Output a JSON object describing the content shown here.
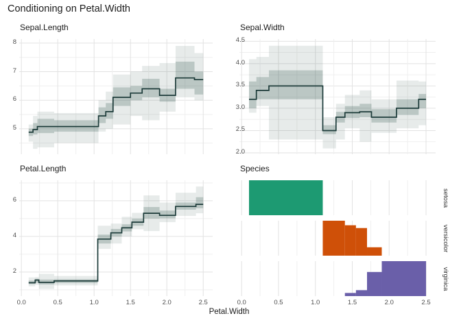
{
  "title": "Conditioning on Petal.Width",
  "axis": {
    "x_label": "Petal.Width",
    "x_ticks": [
      0,
      0.5,
      1,
      1.5,
      2,
      2.5
    ],
    "x_tick_labels": [
      "0.0",
      "0.5",
      "1.0",
      "1.5",
      "2.0",
      "2.5"
    ],
    "x_domain": [
      -0.03,
      2.63
    ],
    "x_minor_step": 0.25
  },
  "colors": {
    "median_line": "#1c3b39",
    "band_outer": "rgba(55,90,85,0.12)",
    "band_inner": "rgba(55,90,85,0.25)",
    "grid_major": "#e2e2e2",
    "grid_minor": "#efefef",
    "tick_label": "#4d4d4d",
    "text": "#1a1a1a"
  },
  "chart_data": [
    {
      "type": "step-band",
      "title": "Sepal.Length",
      "xlabel": "Petal.Width",
      "ylim": [
        4.11,
        8.14
      ],
      "yticks": [
        5,
        6,
        7,
        8
      ],
      "ytick_labels": [
        "5",
        "6",
        "7",
        "8"
      ],
      "segments": [
        {
          "x0": 0.1,
          "x1": 0.16,
          "median": 4.88,
          "inner": [
            4.75,
            5.0
          ],
          "outer": [
            4.55,
            5.15
          ]
        },
        {
          "x0": 0.16,
          "x1": 0.22,
          "median": 4.97,
          "inner": [
            4.8,
            5.2
          ],
          "outer": [
            4.3,
            5.45
          ]
        },
        {
          "x0": 0.22,
          "x1": 0.45,
          "median": 5.08,
          "inner": [
            4.85,
            5.35
          ],
          "outer": [
            4.35,
            5.6
          ]
        },
        {
          "x0": 0.45,
          "x1": 1.06,
          "median": 5.08,
          "inner": [
            4.9,
            5.3
          ],
          "outer": [
            4.5,
            5.55
          ]
        },
        {
          "x0": 1.06,
          "x1": 1.16,
          "median": 5.45,
          "inner": [
            5.2,
            5.75
          ],
          "outer": [
            4.9,
            6.0
          ]
        },
        {
          "x0": 1.16,
          "x1": 1.26,
          "median": 5.6,
          "inner": [
            5.35,
            5.9
          ],
          "outer": [
            5.0,
            6.3
          ]
        },
        {
          "x0": 1.26,
          "x1": 1.5,
          "median": 6.1,
          "inner": [
            5.8,
            6.45
          ],
          "outer": [
            5.15,
            6.9
          ]
        },
        {
          "x0": 1.5,
          "x1": 1.66,
          "median": 6.25,
          "inner": [
            6.0,
            6.5
          ],
          "outer": [
            5.45,
            7.0
          ]
        },
        {
          "x0": 1.66,
          "x1": 1.9,
          "median": 6.4,
          "inner": [
            6.1,
            6.75
          ],
          "outer": [
            5.3,
            7.2
          ]
        },
        {
          "x0": 1.9,
          "x1": 2.12,
          "median": 6.17,
          "inner": [
            5.95,
            6.4
          ],
          "outer": [
            5.6,
            7.3
          ]
        },
        {
          "x0": 2.12,
          "x1": 2.38,
          "median": 6.78,
          "inner": [
            6.4,
            7.35
          ],
          "outer": [
            6.1,
            7.9
          ]
        },
        {
          "x0": 2.38,
          "x1": 2.5,
          "median": 6.72,
          "inner": [
            6.2,
            7.0
          ],
          "outer": [
            6.0,
            7.65
          ]
        }
      ]
    },
    {
      "type": "step-band",
      "title": "Sepal.Width",
      "xlabel": "Petal.Width",
      "ylim": [
        1.97,
        4.55
      ],
      "yticks": [
        2,
        2.5,
        3,
        3.5,
        4,
        4.5
      ],
      "ytick_labels": [
        "2.0",
        "2.5",
        "3.0",
        "3.5",
        "4.0",
        "4.5"
      ],
      "segments": [
        {
          "x0": 0.1,
          "x1": 0.2,
          "median": 3.2,
          "inner": [
            3.0,
            3.6
          ],
          "outer": [
            2.9,
            4.1
          ]
        },
        {
          "x0": 0.2,
          "x1": 0.37,
          "median": 3.4,
          "inner": [
            3.2,
            3.7
          ],
          "outer": [
            3.05,
            4.15
          ]
        },
        {
          "x0": 0.37,
          "x1": 1.1,
          "median": 3.5,
          "inner": [
            3.2,
            3.85
          ],
          "outer": [
            2.3,
            4.4
          ]
        },
        {
          "x0": 1.1,
          "x1": 1.28,
          "median": 2.5,
          "inner": [
            2.42,
            2.62
          ],
          "outer": [
            2.1,
            2.8
          ]
        },
        {
          "x0": 1.28,
          "x1": 1.4,
          "median": 2.8,
          "inner": [
            2.68,
            2.92
          ],
          "outer": [
            2.3,
            3.1
          ]
        },
        {
          "x0": 1.4,
          "x1": 1.6,
          "median": 2.9,
          "inner": [
            2.78,
            3.05
          ],
          "outer": [
            2.55,
            3.3
          ]
        },
        {
          "x0": 1.6,
          "x1": 1.76,
          "median": 2.92,
          "inner": [
            2.8,
            3.1
          ],
          "outer": [
            2.25,
            3.4
          ]
        },
        {
          "x0": 1.76,
          "x1": 2.1,
          "median": 2.8,
          "inner": [
            2.68,
            2.98
          ],
          "outer": [
            2.45,
            3.2
          ]
        },
        {
          "x0": 2.1,
          "x1": 2.4,
          "median": 3.0,
          "inner": [
            2.85,
            3.2
          ],
          "outer": [
            2.55,
            3.62
          ]
        },
        {
          "x0": 2.4,
          "x1": 2.5,
          "median": 3.2,
          "inner": [
            3.0,
            3.32
          ],
          "outer": [
            2.62,
            3.6
          ]
        }
      ]
    },
    {
      "type": "step-band",
      "title": "Petal.Length",
      "xlabel": "Petal.Width",
      "ylim": [
        0.65,
        7.15
      ],
      "yticks": [
        2,
        4,
        6
      ],
      "ytick_labels": [
        "2",
        "4",
        "6"
      ],
      "segments": [
        {
          "x0": 0.1,
          "x1": 0.19,
          "median": 1.4,
          "inner": [
            1.32,
            1.52
          ],
          "outer": [
            1.2,
            1.7
          ]
        },
        {
          "x0": 0.19,
          "x1": 0.24,
          "median": 1.55,
          "inner": [
            1.4,
            1.62
          ],
          "outer": [
            1.28,
            1.72
          ]
        },
        {
          "x0": 0.24,
          "x1": 0.45,
          "median": 1.42,
          "inner": [
            1.3,
            1.58
          ],
          "outer": [
            1.05,
            1.9
          ]
        },
        {
          "x0": 0.45,
          "x1": 1.05,
          "median": 1.5,
          "inner": [
            1.38,
            1.6
          ],
          "outer": [
            1.25,
            1.78
          ]
        },
        {
          "x0": 1.05,
          "x1": 1.23,
          "median": 3.85,
          "inner": [
            3.6,
            4.1
          ],
          "outer": [
            3.3,
            4.6
          ]
        },
        {
          "x0": 1.23,
          "x1": 1.38,
          "median": 4.2,
          "inner": [
            4.0,
            4.42
          ],
          "outer": [
            3.6,
            4.72
          ]
        },
        {
          "x0": 1.38,
          "x1": 1.52,
          "median": 4.48,
          "inner": [
            4.28,
            4.68
          ],
          "outer": [
            4.0,
            5.1
          ]
        },
        {
          "x0": 1.52,
          "x1": 1.68,
          "median": 4.8,
          "inner": [
            4.6,
            5.0
          ],
          "outer": [
            4.4,
            5.32
          ]
        },
        {
          "x0": 1.68,
          "x1": 1.9,
          "median": 5.3,
          "inner": [
            5.0,
            5.65
          ],
          "outer": [
            4.3,
            6.3
          ]
        },
        {
          "x0": 1.9,
          "x1": 2.12,
          "median": 5.18,
          "inner": [
            5.02,
            5.45
          ],
          "outer": [
            4.8,
            5.9
          ]
        },
        {
          "x0": 2.12,
          "x1": 2.4,
          "median": 5.68,
          "inner": [
            5.5,
            5.9
          ],
          "outer": [
            5.15,
            6.45
          ]
        },
        {
          "x0": 2.4,
          "x1": 2.5,
          "median": 5.8,
          "inner": [
            5.58,
            6.2
          ],
          "outer": [
            5.3,
            6.8
          ]
        }
      ]
    },
    {
      "type": "histogram-facets",
      "title": "Species",
      "xlabel": "Petal.Width",
      "facets": [
        {
          "label": "setosa",
          "color": "#1d9a72",
          "bins": [
            {
              "x0": 0.1,
              "x1": 1.1,
              "height": 1.0
            }
          ]
        },
        {
          "label": "versicolor",
          "color": "#cf5008",
          "bins": [
            {
              "x0": 1.1,
              "x1": 1.4,
              "height": 1.0
            },
            {
              "x0": 1.4,
              "x1": 1.55,
              "height": 0.87
            },
            {
              "x0": 1.55,
              "x1": 1.7,
              "height": 0.79
            },
            {
              "x0": 1.7,
              "x1": 1.9,
              "height": 0.24
            }
          ]
        },
        {
          "label": "virginica",
          "color": "#6a5fa9",
          "bins": [
            {
              "x0": 1.4,
              "x1": 1.55,
              "height": 0.09
            },
            {
              "x0": 1.55,
              "x1": 1.7,
              "height": 0.17
            },
            {
              "x0": 1.7,
              "x1": 1.9,
              "height": 0.69
            },
            {
              "x0": 1.9,
              "x1": 2.5,
              "height": 1.0
            }
          ]
        }
      ]
    }
  ]
}
